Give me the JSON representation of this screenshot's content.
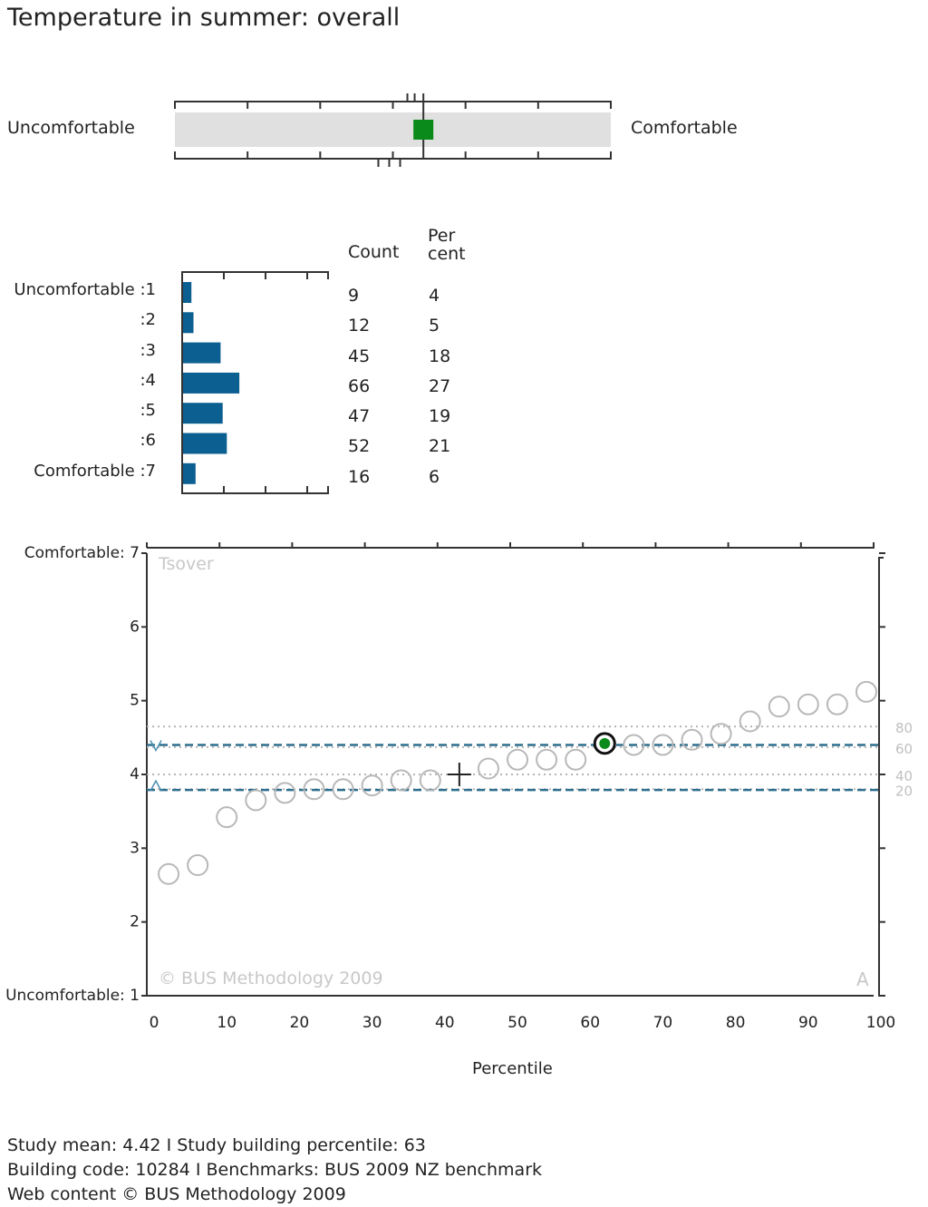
{
  "title": "Temperature in summer: overall",
  "scale": {
    "left_label": "Uncomfortable",
    "right_label": "Comfortable",
    "min": 1,
    "max": 7,
    "mean": 4.42,
    "marker_color": "#0a8a1a",
    "top_benchmark_ticks": [
      4.2,
      4.3,
      4.42
    ],
    "bottom_benchmark_ticks": [
      3.8,
      3.95,
      4.1
    ]
  },
  "distribution": {
    "count_header": "Count",
    "percent_header_line1": "Per",
    "percent_header_line2": "cent",
    "bar_color": "#0b5f91",
    "rows": [
      {
        "label": "Uncomfortable :1",
        "count": "9",
        "percent": "4"
      },
      {
        "label": ":2",
        "count": "12",
        "percent": "5"
      },
      {
        "label": ":3",
        "count": "45",
        "percent": "18"
      },
      {
        "label": ":4",
        "count": "66",
        "percent": "27"
      },
      {
        "label": ":5",
        "count": "47",
        "percent": "19"
      },
      {
        "label": ":6",
        "count": "52",
        "percent": "21"
      },
      {
        "label": "Comfortable :7",
        "count": "16",
        "percent": "6"
      }
    ]
  },
  "chart_data": {
    "type": "scatter",
    "series_label": "Tsover",
    "xlabel": "Percentile",
    "xlim": [
      0,
      100
    ],
    "ylim": [
      1,
      7
    ],
    "x_ticks": [
      "0",
      "10",
      "20",
      "30",
      "40",
      "50",
      "60",
      "70",
      "80",
      "90",
      "100"
    ],
    "y_ticks": [
      {
        "value": 7,
        "label": "Comfortable: 7"
      },
      {
        "value": 6,
        "label": "6"
      },
      {
        "value": 5,
        "label": "5"
      },
      {
        "value": 4,
        "label": "4"
      },
      {
        "value": 3,
        "label": "3"
      },
      {
        "value": 2,
        "label": "2"
      },
      {
        "value": 1,
        "label": "Uncomfortable: 1"
      }
    ],
    "points": [
      {
        "x": 3,
        "y": 2.65
      },
      {
        "x": 7,
        "y": 2.77
      },
      {
        "x": 11,
        "y": 3.42
      },
      {
        "x": 15,
        "y": 3.65
      },
      {
        "x": 19,
        "y": 3.75
      },
      {
        "x": 23,
        "y": 3.8
      },
      {
        "x": 27,
        "y": 3.8
      },
      {
        "x": 31,
        "y": 3.85
      },
      {
        "x": 35,
        "y": 3.92
      },
      {
        "x": 39,
        "y": 3.92
      },
      {
        "x": 47,
        "y": 4.08
      },
      {
        "x": 51,
        "y": 4.2
      },
      {
        "x": 55,
        "y": 4.2
      },
      {
        "x": 59,
        "y": 4.2
      },
      {
        "x": 67,
        "y": 4.4
      },
      {
        "x": 71,
        "y": 4.4
      },
      {
        "x": 75,
        "y": 4.47
      },
      {
        "x": 79,
        "y": 4.55
      },
      {
        "x": 83,
        "y": 4.72
      },
      {
        "x": 87,
        "y": 4.92
      },
      {
        "x": 91,
        "y": 4.95
      },
      {
        "x": 95,
        "y": 4.95
      },
      {
        "x": 99,
        "y": 5.12
      }
    ],
    "study_building": {
      "x": 63,
      "y": 4.42
    },
    "mean_cross": {
      "x": 43,
      "y": 4.0
    },
    "percentile_lines": [
      {
        "label": "80",
        "y": 4.65
      },
      {
        "label": "60",
        "y": 4.37
      },
      {
        "label": "40",
        "y": 4.0
      },
      {
        "label": "20",
        "y": 3.8
      }
    ],
    "benchmark_lines": [
      4.4,
      3.79
    ],
    "watermark": "© BUS Methodology 2009",
    "corner_letter": "A"
  },
  "footer": {
    "line1": "Study mean: 4.42  I  Study building percentile: 63",
    "line2": "Building code: 10284 I Benchmarks: BUS 2009 NZ benchmark",
    "line3": "Web content © BUS Methodology 2009"
  }
}
